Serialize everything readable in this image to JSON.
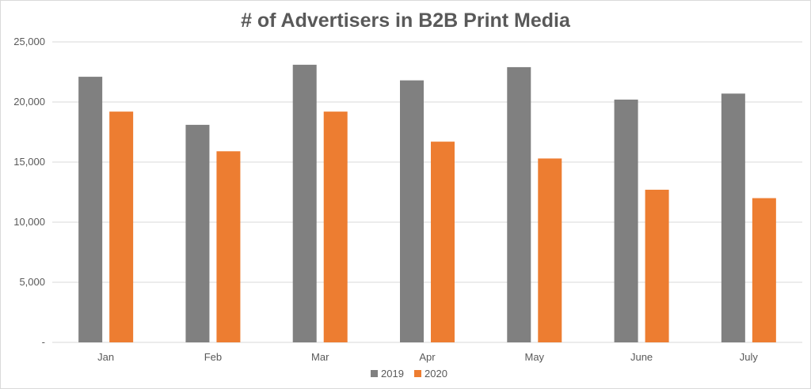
{
  "chart_data": {
    "type": "bar",
    "title": "# of Advertisers in B2B Print Media",
    "categories": [
      "Jan",
      "Feb",
      "Mar",
      "Apr",
      "May",
      "June",
      "July"
    ],
    "series": [
      {
        "name": "2019",
        "color": "#808080",
        "values": [
          22100,
          18100,
          23100,
          21800,
          22900,
          20200,
          20700
        ]
      },
      {
        "name": "2020",
        "color": "#ed7d31",
        "values": [
          19200,
          15900,
          19200,
          16700,
          15300,
          12700,
          12000
        ]
      }
    ],
    "ylim": [
      0,
      25000
    ],
    "yticks": [
      0,
      5000,
      10000,
      15000,
      20000,
      25000
    ],
    "ytick_labels": [
      "-",
      "5,000",
      "10,000",
      "15,000",
      "20,000",
      "25,000"
    ],
    "xlabel": "",
    "ylabel": "",
    "grid": true,
    "legend_position": "bottom"
  }
}
